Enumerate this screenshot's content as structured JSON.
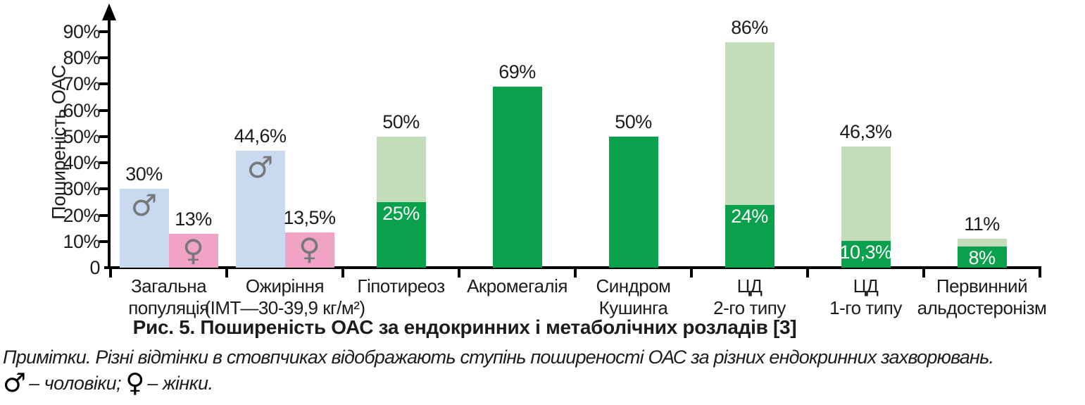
{
  "caption": "Рис. 5. Поширеність ОАС за ендокринних і метаболічних розладів [3]",
  "notes": {
    "line1": "Примітки. Різні відтінки в стовпчиках відображають ступінь поширеності ОАС за різних ендокринних захворювань.",
    "legend": [
      {
        "symbol": "male",
        "text": " – чоловіки; "
      },
      {
        "symbol": "female",
        "text": " – жінки."
      }
    ]
  },
  "symbols": {
    "male": "♂",
    "female": "♀"
  },
  "colors": {
    "male_bar": "#c9d9f0",
    "female_bar": "#f0a3c4",
    "dark_green": "#0aa14d",
    "light_green": "#c3dcba",
    "symbol_gray": "#77787b",
    "axis": "#000000",
    "text": "#1c1c1c",
    "inside_label": "#ffffff"
  },
  "chart_data": {
    "type": "bar",
    "title": "Рис. 5. Поширеність ОАС за ендокринних і метаболічних розладів [3]",
    "xlabel": "",
    "ylabel": "Поширеність ОАС",
    "ylim": [
      0,
      97
    ],
    "grid": false,
    "legend_position": "none",
    "yticks": [
      "0",
      "10%",
      "20%",
      "30%",
      "40%",
      "50%",
      "60%",
      "70%",
      "80%",
      "90%"
    ],
    "ytick_values": [
      0,
      10,
      20,
      30,
      40,
      50,
      60,
      70,
      80,
      90
    ],
    "groups": [
      {
        "category_lines": [
          "Загальна",
          "популяція"
        ],
        "bars": [
          {
            "style": "male",
            "value": 30,
            "label": "30%"
          },
          {
            "style": "female",
            "value": 13,
            "label": "13%"
          }
        ]
      },
      {
        "category_lines": [
          "Ожиріння",
          "(ІМТ—30-39,9 кг/м²)"
        ],
        "bars": [
          {
            "style": "male",
            "value": 44.6,
            "label": "44,6%"
          },
          {
            "style": "female",
            "value": 13.5,
            "label": "13,5%"
          }
        ]
      },
      {
        "category_lines": [
          "Гіпотиреоз"
        ],
        "bars": [
          {
            "style": "stacked",
            "severe_value": 25,
            "severe_label": "25%",
            "total_value": 50,
            "total_label": "50%"
          }
        ]
      },
      {
        "category_lines": [
          "Акромегалія"
        ],
        "bars": [
          {
            "style": "solid",
            "value": 69,
            "label": "69%"
          }
        ]
      },
      {
        "category_lines": [
          "Синдром",
          "Кушинга"
        ],
        "bars": [
          {
            "style": "solid",
            "value": 50,
            "label": "50%"
          }
        ]
      },
      {
        "category_lines": [
          "ЦД",
          "2-го типу"
        ],
        "bars": [
          {
            "style": "stacked",
            "severe_value": 24,
            "severe_label": "24%",
            "total_value": 86,
            "total_label": "86%"
          }
        ]
      },
      {
        "category_lines": [
          "ЦД",
          "1-го типу"
        ],
        "bars": [
          {
            "style": "stacked",
            "severe_value": 10.3,
            "severe_label": "10,3%",
            "total_value": 46.3,
            "total_label": "46,3%"
          }
        ]
      },
      {
        "category_lines": [
          "Первинний",
          "альдостеронізм"
        ],
        "bars": [
          {
            "style": "stacked",
            "severe_value": 8,
            "severe_label": "8%",
            "total_value": 11,
            "total_label": "11%"
          }
        ]
      }
    ]
  }
}
